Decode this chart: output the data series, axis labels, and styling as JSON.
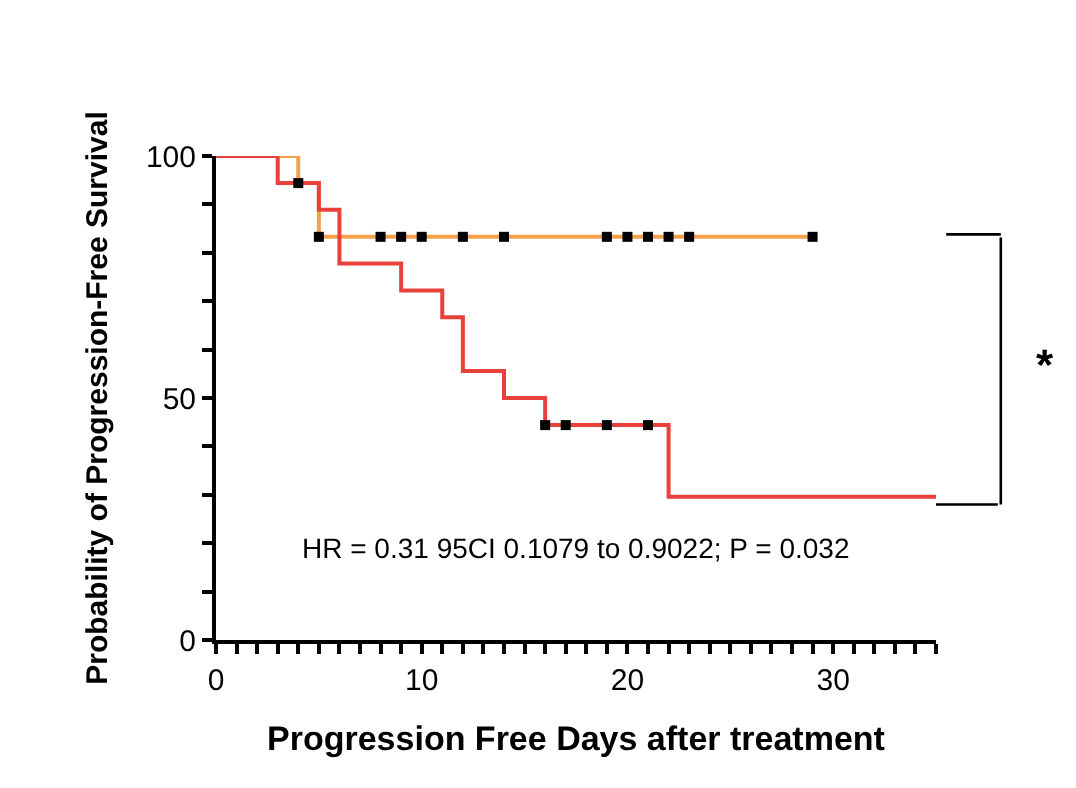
{
  "chart_data": {
    "type": "step",
    "xlabel": "Progression Free Days after treatment",
    "ylabel": "Probability of Progression-Free Survival",
    "series": [
      {
        "color": "#f5a04a",
        "x": [
          0,
          4,
          5,
          29
        ],
        "values": [
          100,
          94.4,
          83.3,
          83.3
        ]
      },
      {
        "color": "#e8413c",
        "x": [
          0,
          3,
          5,
          6,
          9,
          11,
          12,
          14,
          16,
          22,
          35
        ],
        "values": [
          100,
          94.4,
          88.9,
          77.8,
          72.2,
          66.7,
          55.6,
          50,
          44.4,
          29.6,
          29.6
        ]
      },
      {
        "type": "scatter",
        "color": "#000000",
        "marker": "square",
        "x": [
          4,
          5,
          8,
          9,
          10,
          12,
          14,
          19,
          20,
          21,
          22,
          23,
          29
        ],
        "values": [
          94.4,
          83.3,
          83.3,
          83.3,
          83.3,
          83.3,
          83.3,
          83.3,
          83.3,
          83.3,
          83.3,
          83.3,
          83.3
        ]
      },
      {
        "type": "scatter",
        "color": "#000000",
        "marker": "square",
        "x": [
          16,
          17,
          19,
          21
        ],
        "values": [
          44.4,
          44.4,
          44.4,
          44.4
        ]
      }
    ],
    "annotations": [
      "HR = 0.31 95CI 0.1079 to 0.9022; P = 0.032",
      "*"
    ],
    "xlim": [
      0,
      35
    ],
    "xticks": [
      0,
      {
        "value": 1,
        "label": null
      },
      {
        "value": 2,
        "label": null
      },
      {
        "value": 3,
        "label": null
      },
      {
        "value": 4,
        "label": null
      },
      {
        "value": 5,
        "label": null
      },
      {
        "value": 6,
        "label": null
      },
      {
        "value": 7,
        "label": null
      },
      {
        "value": 8,
        "label": null
      },
      {
        "value": 9,
        "label": null
      },
      10,
      {
        "value": 11,
        "label": null
      },
      {
        "value": 12,
        "label": null
      },
      {
        "value": 13,
        "label": null
      },
      {
        "value": 14,
        "label": null
      },
      {
        "value": 15,
        "label": null
      },
      {
        "value": 16,
        "label": null
      },
      {
        "value": 17,
        "label": null
      },
      {
        "value": 18,
        "label": null
      },
      {
        "value": 19,
        "label": null
      },
      20,
      {
        "value": 21,
        "label": null
      },
      {
        "value": 22,
        "label": null
      },
      {
        "value": 23,
        "label": null
      },
      {
        "value": 24,
        "label": null
      },
      {
        "value": 25,
        "label": null
      },
      {
        "value": 26,
        "label": null
      },
      {
        "value": 27,
        "label": null
      },
      {
        "value": 28,
        "label": null
      },
      {
        "value": 29,
        "label": null
      },
      30,
      {
        "value": 31,
        "label": null
      },
      {
        "value": 32,
        "label": null
      },
      {
        "value": 33,
        "label": null
      },
      {
        "value": 34,
        "label": null
      },
      {
        "value": 35,
        "label": null
      }
    ],
    "ylim": [
      0,
      100
    ],
    "yticks": [
      0,
      {
        "value": 10,
        "label": null
      },
      {
        "value": 20,
        "label": null
      },
      {
        "value": 30,
        "label": null
      },
      {
        "value": 40,
        "label": null
      },
      50,
      {
        "value": 60,
        "label": null
      },
      {
        "value": 70,
        "label": null
      },
      {
        "value": 80,
        "label": null
      },
      {
        "value": 90,
        "label": null
      },
      100
    ],
    "relative": false
  }
}
